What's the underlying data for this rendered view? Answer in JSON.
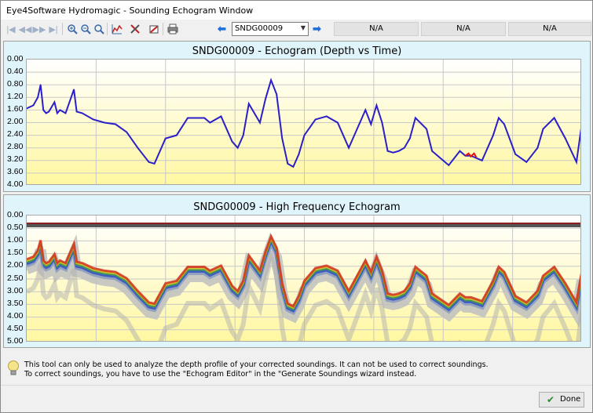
{
  "window": {
    "title": "Eye4Software Hydromagic - Sounding Echogram Window"
  },
  "toolbar": {
    "icons": [
      "first-icon",
      "prev-icon",
      "next-icon",
      "last-icon",
      "zoom-in-icon",
      "zoom-out-icon",
      "zoom-fit-icon",
      "chart-icon",
      "tools-icon",
      "export-icon",
      "print-icon"
    ],
    "sounding_select": "SNDG00009",
    "status": [
      "N/A",
      "N/A",
      "N/A"
    ]
  },
  "top_chart": {
    "title": "SNDG00009 - Echogram (Depth vs Time)",
    "y_ticks": [
      "0.00",
      "0.40",
      "0.80",
      "1.20",
      "1.60",
      "2.00",
      "2.40",
      "2.80",
      "3.20",
      "3.60",
      "4.00"
    ],
    "colors": {
      "line": "#2a1fc8",
      "highlight": "#e01010",
      "bg_top": "#ffffff",
      "bg_bottom": "#fff7a0"
    }
  },
  "bottom_chart": {
    "title": "SNDG00009 - High Frequency Echogram",
    "y_ticks": [
      "0.00",
      "0.50",
      "1.00",
      "1.50",
      "2.00",
      "2.50",
      "3.00",
      "3.50",
      "4.00",
      "4.50",
      "5.00"
    ]
  },
  "chart_data": [
    {
      "type": "line",
      "title": "SNDG00009 - Echogram (Depth vs Time)",
      "ylabel": "",
      "ylim": [
        4.0,
        0.0
      ],
      "grid": true,
      "series": [
        {
          "x": [
            0,
            0.012,
            0.02,
            0.025,
            0.03,
            0.035,
            0.04,
            0.05,
            0.055,
            0.06,
            0.07,
            0.08,
            0.085,
            0.09,
            0.1,
            0.12,
            0.14,
            0.16,
            0.18,
            0.2,
            0.22,
            0.23,
            0.24,
            0.25,
            0.27,
            0.29,
            0.31,
            0.32,
            0.33,
            0.35,
            0.37,
            0.38,
            0.39,
            0.4,
            0.41,
            0.42,
            0.43,
            0.44,
            0.45,
            0.46,
            0.47,
            0.48,
            0.49,
            0.5,
            0.52,
            0.54,
            0.56,
            0.58,
            0.6,
            0.61,
            0.62,
            0.63,
            0.64,
            0.65,
            0.66,
            0.67,
            0.68,
            0.69,
            0.7,
            0.72,
            0.73,
            0.74,
            0.76,
            0.78,
            0.79,
            0.8,
            0.82,
            0.84,
            0.85,
            0.86,
            0.88,
            0.9,
            0.92,
            0.93,
            0.95,
            0.97,
            0.99,
            1.0
          ],
          "values": [
            1.55,
            1.45,
            1.2,
            0.8,
            1.6,
            1.7,
            1.65,
            1.35,
            1.7,
            1.6,
            1.7,
            1.2,
            0.95,
            1.65,
            1.7,
            1.9,
            2.0,
            2.05,
            2.3,
            2.8,
            3.25,
            3.3,
            2.9,
            2.5,
            2.4,
            1.85,
            1.85,
            1.85,
            2.0,
            1.8,
            2.6,
            2.8,
            2.4,
            1.4,
            1.7,
            2.0,
            1.25,
            0.65,
            1.1,
            2.5,
            3.3,
            3.4,
            3.0,
            2.4,
            1.9,
            1.8,
            2.0,
            2.8,
            2.0,
            1.6,
            2.05,
            1.45,
            2.0,
            2.9,
            2.95,
            2.9,
            2.8,
            2.5,
            1.85,
            2.2,
            2.9,
            3.05,
            3.35,
            2.9,
            3.05,
            3.05,
            3.2,
            2.4,
            1.85,
            2.05,
            3.0,
            3.25,
            2.8,
            2.2,
            1.85,
            2.5,
            3.25,
            2.0
          ]
        }
      ]
    },
    {
      "type": "heatmap",
      "title": "SNDG00009 - High Frequency Echogram",
      "ylim": [
        5.0,
        0.0
      ],
      "note_values": {
        "surface_band_depth": 0.33
      }
    }
  ],
  "info": {
    "line1": "This tool can only be used to analyze the depth profile of your corrected soundings. It can not be used to correct soundings.",
    "line2": "To correct soundings, you have to use the \"Echogram Editor\" in the \"Generate Soundings wizard instead."
  },
  "buttons": {
    "done": "Done"
  }
}
